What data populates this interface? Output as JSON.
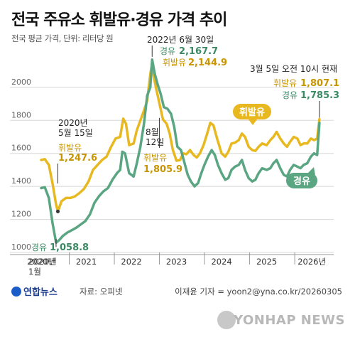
{
  "title": "전국 주유소 휘발유·경유 가격 추이",
  "subtitle": "전국 평균 가격, 단위: 리터당 원",
  "credit": {
    "logo": "연합뉴스",
    "source": "자료: 오피넷",
    "byline": "이재윤 기자 = yoon2@yna.co.kr/20260305",
    "watermark": "YONHAP NEWS"
  },
  "colors": {
    "gasoline": "#e8b820",
    "diesel": "#5aa582",
    "gasoline_label": "#c89400",
    "diesel_label": "#3a8a64"
  },
  "annotations": {
    "start_date": "2020년\n5월 15일",
    "start_gas_label": "휘발유",
    "start_gas_value": "1,247.6",
    "start_diesel_label": "경유",
    "start_diesel_value": "1,058.8",
    "start_diesel_date": "2020년\n1월",
    "peak_date": "2022년 6월 30일",
    "peak_diesel_label": "경유",
    "peak_diesel_value": "2,167.7",
    "peak_gas_label": "휘발유",
    "peak_gas_value": "2,144.9",
    "aug_date": "8월\n12일",
    "aug_gas_label": "휘발유",
    "aug_gas_value": "1,805.9",
    "now_date": "3월 5일 오전 10시 현재",
    "now_gas_label": "휘발유",
    "now_gas_value": "1,807.1",
    "now_diesel_label": "경유",
    "now_diesel_value": "1,785.3",
    "legend_gas": "휘발유",
    "legend_diesel": "경유"
  },
  "chart_data": {
    "type": "line",
    "x_ticks": [
      "2020년",
      "2021",
      "2022",
      "2023",
      "2024",
      "2025",
      "2026년"
    ],
    "y_ticks": [
      1000,
      1200,
      1400,
      1600,
      1800,
      2000
    ],
    "ylim": [
      1000,
      2150
    ],
    "xlim": [
      2020.0,
      2026.25
    ],
    "series": [
      {
        "name": "휘발유",
        "x": [
          2020.0,
          2020.08,
          2020.17,
          2020.25,
          2020.33,
          2020.37,
          2020.45,
          2020.55,
          2020.65,
          2020.75,
          2020.85,
          2020.95,
          2021.05,
          2021.15,
          2021.25,
          2021.35,
          2021.45,
          2021.55,
          2021.65,
          2021.75,
          2021.82,
          2021.88,
          2021.95,
          2022.05,
          2022.12,
          2022.2,
          2022.28,
          2022.35,
          2022.42,
          2022.46,
          2022.5,
          2022.55,
          2022.62,
          2022.7,
          2022.78,
          2022.85,
          2022.92,
          2023.0,
          2023.08,
          2023.15,
          2023.22,
          2023.3,
          2023.38,
          2023.45,
          2023.52,
          2023.6,
          2023.68,
          2023.75,
          2023.82,
          2023.9,
          2024.0,
          2024.08,
          2024.15,
          2024.22,
          2024.3,
          2024.38,
          2024.45,
          2024.52,
          2024.6,
          2024.68,
          2024.75,
          2024.82,
          2024.9,
          2025.0,
          2025.08,
          2025.15,
          2025.22,
          2025.3,
          2025.38,
          2025.45,
          2025.52,
          2025.6,
          2025.68,
          2025.75,
          2025.82,
          2025.9,
          2025.98,
          2026.05,
          2026.12,
          2026.17
        ],
        "values": [
          1560,
          1565,
          1530,
          1420,
          1290,
          1248,
          1310,
          1330,
          1330,
          1340,
          1360,
          1385,
          1430,
          1500,
          1530,
          1560,
          1580,
          1640,
          1690,
          1700,
          1810,
          1780,
          1650,
          1660,
          1740,
          1800,
          1860,
          1920,
          2080,
          2145,
          2060,
          1990,
          1906,
          1806,
          1780,
          1720,
          1620,
          1555,
          1560,
          1600,
          1595,
          1620,
          1590,
          1575,
          1600,
          1650,
          1720,
          1785,
          1770,
          1690,
          1600,
          1580,
          1610,
          1660,
          1665,
          1680,
          1720,
          1700,
          1640,
          1620,
          1615,
          1640,
          1660,
          1650,
          1680,
          1700,
          1730,
          1690,
          1660,
          1640,
          1670,
          1700,
          1690,
          1650,
          1660,
          1660,
          1690,
          1680,
          1690,
          1807
        ]
      },
      {
        "name": "경유",
        "x": [
          2020.0,
          2020.08,
          2020.17,
          2020.25,
          2020.33,
          2020.4,
          2020.48,
          2020.58,
          2020.68,
          2020.78,
          2020.88,
          2020.98,
          2021.08,
          2021.18,
          2021.28,
          2021.38,
          2021.48,
          2021.58,
          2021.68,
          2021.75,
          2021.8,
          2021.86,
          2021.95,
          2022.05,
          2022.12,
          2022.2,
          2022.28,
          2022.35,
          2022.42,
          2022.46,
          2022.52,
          2022.58,
          2022.65,
          2022.72,
          2022.8,
          2022.88,
          2022.95,
          2023.02,
          2023.1,
          2023.18,
          2023.25,
          2023.32,
          2023.4,
          2023.48,
          2023.55,
          2023.62,
          2023.7,
          2023.78,
          2023.85,
          2023.92,
          2024.0,
          2024.08,
          2024.15,
          2024.22,
          2024.3,
          2024.38,
          2024.45,
          2024.52,
          2024.6,
          2024.68,
          2024.75,
          2024.82,
          2024.9,
          2025.0,
          2025.08,
          2025.15,
          2025.22,
          2025.3,
          2025.38,
          2025.45,
          2025.52,
          2025.6,
          2025.68,
          2025.75,
          2025.82,
          2025.9,
          2025.98,
          2026.05,
          2026.12,
          2026.17
        ],
        "values": [
          1390,
          1395,
          1330,
          1180,
          1059,
          1075,
          1100,
          1120,
          1135,
          1150,
          1170,
          1190,
          1230,
          1300,
          1340,
          1370,
          1390,
          1440,
          1480,
          1500,
          1610,
          1600,
          1480,
          1460,
          1540,
          1640,
          1780,
          1950,
          2000,
          2168,
          2080,
          2020,
          1960,
          1880,
          1870,
          1840,
          1760,
          1640,
          1620,
          1540,
          1470,
          1430,
          1400,
          1420,
          1480,
          1530,
          1580,
          1620,
          1590,
          1530,
          1480,
          1440,
          1450,
          1500,
          1520,
          1530,
          1560,
          1500,
          1450,
          1430,
          1440,
          1480,
          1510,
          1500,
          1510,
          1540,
          1560,
          1510,
          1470,
          1460,
          1500,
          1530,
          1520,
          1510,
          1530,
          1540,
          1580,
          1600,
          1590,
          1785
        ]
      }
    ]
  }
}
